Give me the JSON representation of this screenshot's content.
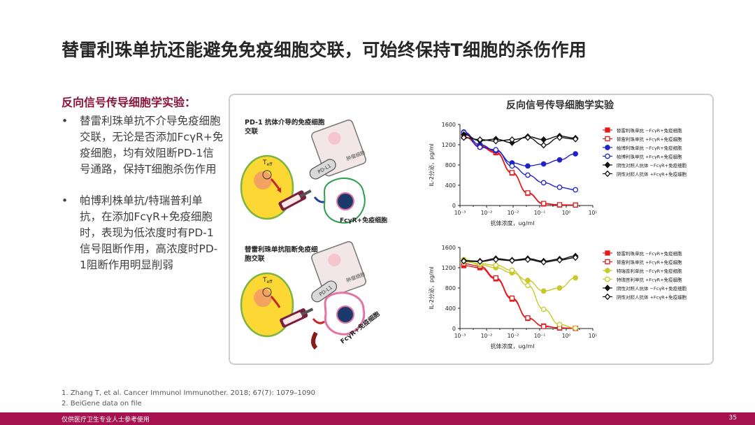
{
  "slide": {
    "title": "替雷利珠单抗还能避免免疫细胞交联，可始终保持T细胞的杀伤作用",
    "subhead": "反向信号传导细胞学实验：",
    "bullets": [
      "替雷利珠单抗不介导免疫细胞交联，无论是否添加FcγR+免疫细胞，均有效阻断PD-1信号通路，保持T细胞杀伤作用",
      "帕博利株单抗/特瑞普利单抗，在添加FcγR+免疫细胞时，表现为低浓度时有PD-1信号阻断作用，高浓度时PD-1阻断作用明显削弱"
    ],
    "bullet_marker": "•",
    "panel_title": "反向信号传导细胞学实验",
    "references": [
      "1.   Zhang T, et al. Cancer Immunol Immunother. 2018; 67(7): 1079–1090",
      "2.   BeiGene data on file"
    ],
    "footer_text": "仅供医疗卫生专业人士参考使用",
    "page_number": "35",
    "colors": {
      "accent": "#a6114f",
      "title_red": "#8a1538",
      "tumor_fill": "#f2e6e6",
      "tcell_fill": "#fdd835"
    }
  },
  "diagrams": {
    "top": {
      "label": "PD-1 抗体介导的免疫细胞交联",
      "tumor": "肿瘤细胞",
      "pdl1": "PD-L1",
      "teff": "T",
      "teff_sub": "eff",
      "fcr": "FcγR+免疫细胞"
    },
    "bottom": {
      "label": "替雷利珠单抗阻断免疫细胞交联",
      "tumor": "肿瘤细胞",
      "pdl1": "PD-L1",
      "teff": "T",
      "teff_sub": "eff",
      "fcr": "FcγR+免疫细胞"
    }
  },
  "chart_data": [
    {
      "type": "line",
      "title": "",
      "xlabel": "抗体浓度，ug/ml",
      "ylabel": "IL-2分泌，pg/ml",
      "x_scale": "log",
      "xlim": [
        0.001,
        10
      ],
      "ylim": [
        0,
        1600
      ],
      "x_ticks": [
        "10⁻³",
        "10⁻²",
        "10⁻²",
        "10⁻¹",
        "10⁰",
        "10¹"
      ],
      "y_ticks": [
        "0",
        "400",
        "800",
        "1200",
        "1600"
      ],
      "x": [
        0.0013,
        0.004,
        0.012,
        0.037,
        0.11,
        0.33,
        1,
        3
      ],
      "series": [
        {
          "name": "替雷利珠单抗 −FcγR+免疫细胞",
          "color": "#e31a1c",
          "marker": "square-filled",
          "values": [
            1420,
            1160,
            1040,
            640,
            240,
            30,
            10,
            10
          ]
        },
        {
          "name": "替雷利珠单抗 +FcγR+免疫细胞",
          "color": "#e31a1c",
          "marker": "square-open",
          "values": [
            1360,
            1180,
            1060,
            650,
            250,
            40,
            15,
            10
          ]
        },
        {
          "name": "帕博利珠单抗 −FcγR+免疫细胞",
          "color": "#1f24c8",
          "marker": "circle-filled",
          "values": [
            1450,
            1200,
            1080,
            840,
            780,
            820,
            900,
            1020
          ]
        },
        {
          "name": "帕博利珠单抗 +FcγR+免疫细胞",
          "color": "#1f24c8",
          "marker": "circle-open",
          "values": [
            1440,
            1150,
            1100,
            780,
            600,
            450,
            360,
            310
          ]
        },
        {
          "name": "阴性对照人抗体 −FcγR+免疫细胞",
          "color": "#111111",
          "marker": "diamond-filled",
          "values": [
            1400,
            1280,
            1310,
            1240,
            1360,
            1300,
            1370,
            1330
          ]
        },
        {
          "name": "阴性对照人抗体 +FcγR+免疫细胞",
          "color": "#111111",
          "marker": "diamond-open",
          "values": [
            1340,
            1300,
            1270,
            1300,
            1340,
            1190,
            1340,
            1310
          ]
        }
      ]
    },
    {
      "type": "line",
      "title": "",
      "xlabel": "抗体浓度，ug/ml",
      "ylabel": "IL-2分泌，pg/ml",
      "x_scale": "log",
      "xlim": [
        0.001,
        10
      ],
      "ylim": [
        0,
        1600
      ],
      "x_ticks": [
        "10⁻³",
        "10⁻²",
        "10⁻²",
        "10⁻¹",
        "10⁰",
        "10¹"
      ],
      "y_ticks": [
        "0",
        "400",
        "800",
        "1200",
        "1600"
      ],
      "x": [
        0.0013,
        0.004,
        0.012,
        0.037,
        0.11,
        0.33,
        1,
        3
      ],
      "series": [
        {
          "name": "替雷利珠单抗 −FcγR+免疫细胞",
          "color": "#e31a1c",
          "marker": "square-filled",
          "values": [
            1240,
            1200,
            980,
            580,
            200,
            50,
            10,
            5
          ]
        },
        {
          "name": "替雷利珠单抗 +FcγR+免疫细胞",
          "color": "#e31a1c",
          "marker": "square-open",
          "values": [
            1280,
            1230,
            1000,
            600,
            210,
            40,
            15,
            5
          ]
        },
        {
          "name": "特瑞普利单抗 −FcγR+免疫细胞",
          "color": "#c9c92a",
          "marker": "circle-filled",
          "values": [
            1360,
            1260,
            1200,
            1100,
            950,
            740,
            800,
            1000
          ]
        },
        {
          "name": "特瑞普利单抗 +FcγR+免疫细胞",
          "color": "#c9c92a",
          "marker": "circle-open",
          "values": [
            1320,
            1280,
            1250,
            1150,
            850,
            380,
            80,
            10
          ]
        },
        {
          "name": "阴性对照人抗体 −FcγR+免疫细胞",
          "color": "#111111",
          "marker": "diamond-filled",
          "values": [
            1340,
            1330,
            1380,
            1350,
            1380,
            1330,
            1370,
            1430
          ]
        },
        {
          "name": "阴性对照人抗体 +FcγR+免疫细胞",
          "color": "#111111",
          "marker": "diamond-open",
          "values": [
            1330,
            1320,
            1360,
            1340,
            1360,
            1310,
            1350,
            1400
          ]
        }
      ]
    }
  ]
}
